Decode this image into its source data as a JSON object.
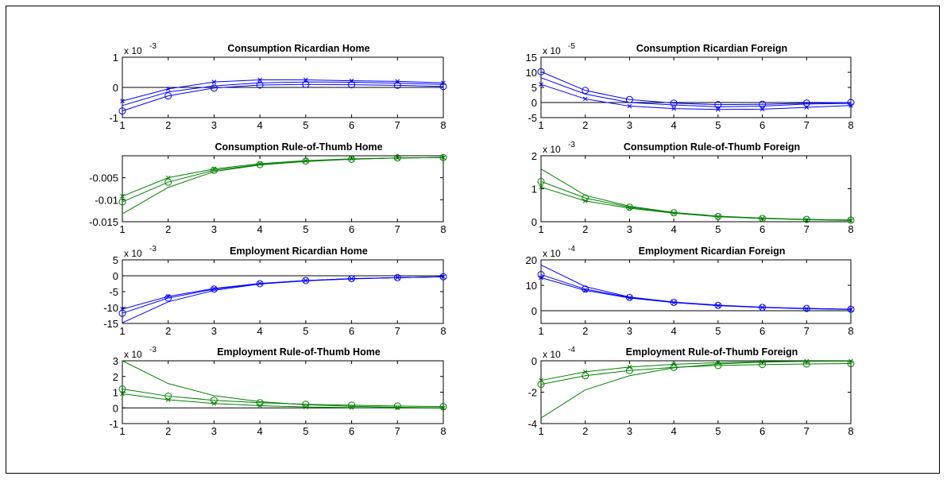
{
  "colors": {
    "ricardian": "#0000ff",
    "rule_of_thumb": "#008000",
    "axis": "#000000"
  },
  "chart_data": [
    {
      "type": "line",
      "title": "Consumption Ricardian Home",
      "exponent_label": "x 10",
      "exponent_power": "-3",
      "x": [
        1,
        2,
        3,
        4,
        5,
        6,
        7,
        8
      ],
      "ylim": [
        -1,
        1
      ],
      "yticks": [
        -1,
        0,
        1
      ],
      "ytick_labels": [
        "-1",
        "0",
        "1"
      ],
      "series": [
        {
          "marker": "x",
          "values": [
            -0.45,
            -0.05,
            0.18,
            0.25,
            0.25,
            0.22,
            0.2,
            0.15
          ]
        },
        {
          "marker": "none",
          "values": [
            -0.6,
            -0.15,
            0.05,
            0.15,
            0.18,
            0.17,
            0.14,
            0.1
          ]
        },
        {
          "marker": "o",
          "values": [
            -0.78,
            -0.28,
            -0.02,
            0.08,
            0.1,
            0.09,
            0.07,
            0.03
          ]
        }
      ]
    },
    {
      "type": "line",
      "title": "Consumption Ricardian Foreign",
      "exponent_label": "x 10",
      "exponent_power": "-5",
      "x": [
        1,
        2,
        3,
        4,
        5,
        6,
        7,
        8
      ],
      "ylim": [
        -5,
        15
      ],
      "yticks": [
        -5,
        0,
        5,
        10,
        15
      ],
      "ytick_labels": [
        "-5",
        "0",
        "5",
        "10",
        "15"
      ],
      "series": [
        {
          "marker": "o",
          "values": [
            10.2,
            4.0,
            1.0,
            -0.2,
            -0.7,
            -0.6,
            -0.2,
            0.0
          ]
        },
        {
          "marker": "none",
          "values": [
            8.2,
            2.8,
            0.0,
            -0.8,
            -1.4,
            -1.2,
            -0.5,
            -0.3
          ]
        },
        {
          "marker": "x",
          "values": [
            6.0,
            1.2,
            -1.2,
            -2.0,
            -2.3,
            -2.2,
            -1.6,
            -1.0
          ]
        }
      ]
    },
    {
      "type": "line",
      "title": "Consumption Rule-of-Thumb Home",
      "exponent_label": "",
      "exponent_power": "",
      "x": [
        1,
        2,
        3,
        4,
        5,
        6,
        7,
        8
      ],
      "ylim": [
        -0.015,
        0.0
      ],
      "yticks": [
        -0.015,
        -0.01,
        -0.005
      ],
      "ytick_labels": [
        "-0.015",
        "-0.01",
        "-0.005"
      ],
      "series": [
        {
          "marker": "x",
          "values": [
            -0.0092,
            -0.005,
            -0.003,
            -0.0018,
            -0.0011,
            -0.0007,
            -0.0005,
            -0.0004
          ]
        },
        {
          "marker": "o",
          "values": [
            -0.0105,
            -0.006,
            -0.0033,
            -0.002,
            -0.0012,
            -0.0008,
            -0.0005,
            -0.0004
          ]
        },
        {
          "marker": "none",
          "values": [
            -0.0132,
            -0.0072,
            -0.0036,
            -0.0021,
            -0.0013,
            -0.0008,
            -0.0005,
            -0.0004
          ]
        }
      ]
    },
    {
      "type": "line",
      "title": "Consumption Rule-of-Thumb Foreign",
      "exponent_label": "x 10",
      "exponent_power": "-3",
      "x": [
        1,
        2,
        3,
        4,
        5,
        6,
        7,
        8
      ],
      "ylim": [
        0,
        2
      ],
      "yticks": [
        0,
        1,
        2
      ],
      "ytick_labels": [
        "0",
        "1",
        "2"
      ],
      "series": [
        {
          "marker": "none",
          "values": [
            1.6,
            0.8,
            0.47,
            0.28,
            0.17,
            0.11,
            0.07,
            0.05
          ]
        },
        {
          "marker": "o",
          "values": [
            1.22,
            0.72,
            0.44,
            0.27,
            0.16,
            0.1,
            0.07,
            0.05
          ]
        },
        {
          "marker": "x",
          "values": [
            1.05,
            0.63,
            0.41,
            0.26,
            0.15,
            0.1,
            0.06,
            0.04
          ]
        }
      ]
    },
    {
      "type": "line",
      "title": "Employment Ricardian Home",
      "exponent_label": "x 10",
      "exponent_power": "-3",
      "x": [
        1,
        2,
        3,
        4,
        5,
        6,
        7,
        8
      ],
      "ylim": [
        -15,
        5
      ],
      "yticks": [
        -15,
        -10,
        -5,
        0,
        5
      ],
      "ytick_labels": [
        "-15",
        "-10",
        "-5",
        "0",
        "5"
      ],
      "series": [
        {
          "marker": "x",
          "values": [
            -10.5,
            -6.5,
            -4.0,
            -2.4,
            -1.5,
            -0.9,
            -0.6,
            -0.3
          ]
        },
        {
          "marker": "o",
          "values": [
            -11.8,
            -7.0,
            -4.2,
            -2.5,
            -1.5,
            -0.9,
            -0.6,
            -0.3
          ]
        },
        {
          "marker": "none",
          "values": [
            -14.8,
            -8.2,
            -4.6,
            -2.6,
            -1.6,
            -1.0,
            -0.6,
            -0.3
          ]
        }
      ]
    },
    {
      "type": "line",
      "title": "Employment Ricardian Foreign",
      "exponent_label": "x 10",
      "exponent_power": "-4",
      "x": [
        1,
        2,
        3,
        4,
        5,
        6,
        7,
        8
      ],
      "ylim": [
        -5,
        20
      ],
      "yticks": [
        0,
        10,
        20
      ],
      "ytick_labels": [
        "0",
        "10",
        "20"
      ],
      "series": [
        {
          "marker": "none",
          "values": [
            18.0,
            9.5,
            5.4,
            3.4,
            2.2,
            1.4,
            0.9,
            0.6
          ]
        },
        {
          "marker": "o",
          "values": [
            14.2,
            8.5,
            5.2,
            3.3,
            2.1,
            1.3,
            0.9,
            0.6
          ]
        },
        {
          "marker": "x",
          "values": [
            13.0,
            8.0,
            5.0,
            3.2,
            2.0,
            1.3,
            0.8,
            0.5
          ]
        }
      ]
    },
    {
      "type": "line",
      "title": "Employment Rule-of-Thumb Home",
      "exponent_label": "x 10",
      "exponent_power": "-3",
      "x": [
        1,
        2,
        3,
        4,
        5,
        6,
        7,
        8
      ],
      "ylim": [
        -1,
        3
      ],
      "yticks": [
        -1,
        0,
        1,
        2,
        3
      ],
      "ytick_labels": [
        "-1",
        "0",
        "1",
        "2",
        "3"
      ],
      "series": [
        {
          "marker": "none",
          "values": [
            3.0,
            1.55,
            0.78,
            0.4,
            0.2,
            0.1,
            0.04,
            0.0
          ]
        },
        {
          "marker": "o",
          "values": [
            1.2,
            0.75,
            0.48,
            0.33,
            0.23,
            0.17,
            0.12,
            0.08
          ]
        },
        {
          "marker": "x",
          "values": [
            0.9,
            0.52,
            0.28,
            0.14,
            0.06,
            0.02,
            0.0,
            -0.02
          ]
        }
      ]
    },
    {
      "type": "line",
      "title": "Employment Rule-of-Thumb Foreign",
      "exponent_label": "x 10",
      "exponent_power": "-4",
      "x": [
        1,
        2,
        3,
        4,
        5,
        6,
        7,
        8
      ],
      "ylim": [
        -4,
        0
      ],
      "yticks": [
        -4,
        -2,
        0
      ],
      "ytick_labels": [
        "-4",
        "-2",
        "0"
      ],
      "series": [
        {
          "marker": "x",
          "values": [
            -1.25,
            -0.7,
            -0.4,
            -0.22,
            -0.12,
            -0.06,
            -0.03,
            -0.02
          ]
        },
        {
          "marker": "o",
          "values": [
            -1.5,
            -0.95,
            -0.62,
            -0.42,
            -0.3,
            -0.24,
            -0.2,
            -0.18
          ]
        },
        {
          "marker": "none",
          "values": [
            -3.65,
            -1.85,
            -0.95,
            -0.45,
            -0.2,
            -0.08,
            -0.03,
            -0.01
          ]
        }
      ]
    }
  ]
}
